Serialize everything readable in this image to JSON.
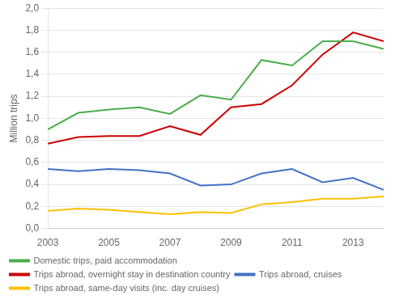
{
  "chart_data": {
    "type": "line",
    "ylabel": "Million trips",
    "x": [
      2003,
      2004,
      2005,
      2006,
      2007,
      2008,
      2009,
      2010,
      2011,
      2012,
      2013,
      2014
    ],
    "series": [
      {
        "name": "Domestic trips, paid accommodation",
        "color": "#4BAD4B",
        "values": [
          0.9,
          1.05,
          1.08,
          1.1,
          1.04,
          1.21,
          1.17,
          1.53,
          1.48,
          1.7,
          1.7,
          1.63
        ]
      },
      {
        "name": "Trips abroad, overnight stay in destination country",
        "color": "#CC0000",
        "values": [
          0.77,
          0.83,
          0.84,
          0.84,
          0.93,
          0.85,
          1.1,
          1.13,
          1.3,
          1.58,
          1.78,
          1.7
        ]
      },
      {
        "name": "Trips abroad, cruises",
        "color": "#4472C4",
        "values": [
          0.54,
          0.52,
          0.54,
          0.53,
          0.5,
          0.39,
          0.4,
          0.5,
          0.54,
          0.42,
          0.46,
          0.35
        ]
      },
      {
        "name": "Trips abroad, same-day visits (inc. day cruises)",
        "color": "#FFC000",
        "values": [
          0.16,
          0.18,
          0.17,
          0.15,
          0.13,
          0.15,
          0.14,
          0.22,
          0.24,
          0.27,
          0.27,
          0.29
        ]
      }
    ],
    "xlim": [
      2003,
      2014
    ],
    "xticks": [
      2003,
      2005,
      2007,
      2009,
      2011,
      2013
    ],
    "ylim": [
      0.0,
      2.0
    ],
    "yticks": [
      {
        "value": 0.0,
        "label": "0,0"
      },
      {
        "value": 0.2,
        "label": "0,2"
      },
      {
        "value": 0.4,
        "label": "0,4"
      },
      {
        "value": 0.6,
        "label": "0,6"
      },
      {
        "value": 0.8,
        "label": "0,8"
      },
      {
        "value": 1.0,
        "label": "1,0"
      },
      {
        "value": 1.2,
        "label": "1,2"
      },
      {
        "value": 1.4,
        "label": "1,4"
      },
      {
        "value": 1.6,
        "label": "1,6"
      },
      {
        "value": 1.8,
        "label": "1,8"
      },
      {
        "value": 2.0,
        "label": "2,0"
      }
    ],
    "grid": "y",
    "legend": "bottom"
  }
}
